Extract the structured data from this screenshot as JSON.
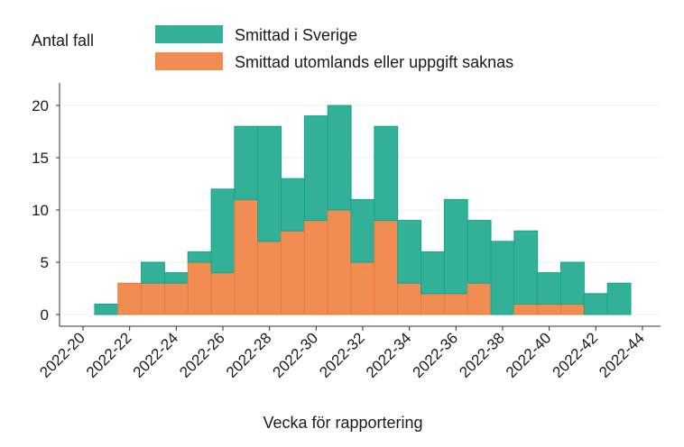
{
  "chart_data": {
    "type": "bar",
    "stacked": true,
    "ylabel": "Antal fall",
    "xlabel": "Vecka för rapportering",
    "categories": [
      "2022-21",
      "2022-22",
      "2022-23",
      "2022-24",
      "2022-25",
      "2022-26",
      "2022-27",
      "2022-28",
      "2022-29",
      "2022-30",
      "2022-31",
      "2022-32",
      "2022-33",
      "2022-34",
      "2022-35",
      "2022-36",
      "2022-37",
      "2022-38",
      "2022-39",
      "2022-40",
      "2022-41",
      "2022-42",
      "2022-43"
    ],
    "series": [
      {
        "name": "Smittad utomlands eller uppgift saknas",
        "color": "#f18c52",
        "values": [
          0,
          3,
          3,
          3,
          5,
          4,
          11,
          7,
          8,
          9,
          10,
          5,
          9,
          3,
          2,
          2,
          3,
          0,
          1,
          1,
          1,
          0,
          0
        ]
      },
      {
        "name": "Smittad i Sverige",
        "color": "#33b198",
        "values": [
          1,
          0,
          2,
          1,
          1,
          8,
          7,
          11,
          5,
          10,
          10,
          6,
          9,
          6,
          4,
          9,
          6,
          7,
          7,
          3,
          4,
          2,
          3
        ]
      }
    ],
    "xticks": [
      "2022-20",
      "2022-22",
      "2022-24",
      "2022-26",
      "2022-28",
      "2022-30",
      "2022-32",
      "2022-34",
      "2022-36",
      "2022-38",
      "2022-40",
      "2022-42",
      "2022-44"
    ],
    "yticks": [
      0,
      5,
      10,
      15,
      20
    ],
    "ylim": [
      0,
      22
    ],
    "grid": true,
    "legend": "top"
  }
}
